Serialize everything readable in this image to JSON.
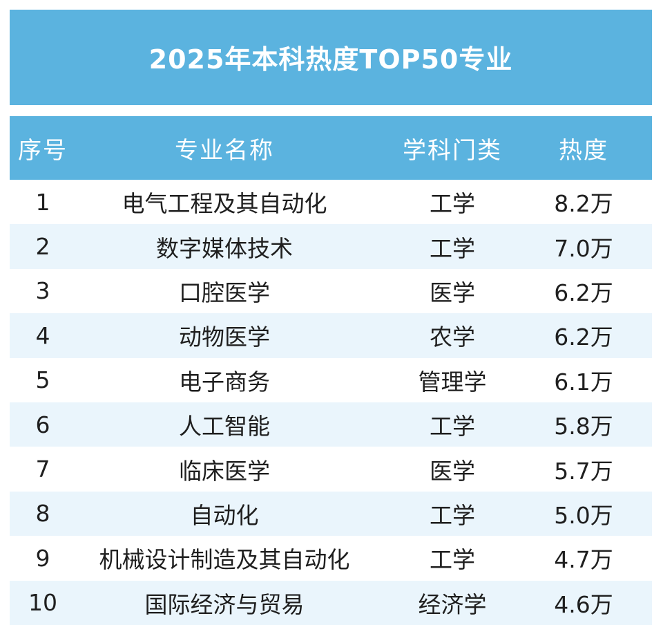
{
  "title": "2025年本科热度TOP50专业",
  "header": {
    "index": "序号",
    "major": "专业名称",
    "category": "学科门类",
    "heat": "热度"
  },
  "rows": [
    {
      "index": "1",
      "major": "电气工程及其自动化",
      "category": "工学",
      "heat": "8.2万"
    },
    {
      "index": "2",
      "major": "数字媒体技术",
      "category": "工学",
      "heat": "7.0万"
    },
    {
      "index": "3",
      "major": "口腔医学",
      "category": "医学",
      "heat": "6.2万"
    },
    {
      "index": "4",
      "major": "动物医学",
      "category": "农学",
      "heat": "6.2万"
    },
    {
      "index": "5",
      "major": "电子商务",
      "category": "管理学",
      "heat": "6.1万"
    },
    {
      "index": "6",
      "major": "人工智能",
      "category": "工学",
      "heat": "5.8万"
    },
    {
      "index": "7",
      "major": "临床医学",
      "category": "医学",
      "heat": "5.7万"
    },
    {
      "index": "8",
      "major": "自动化",
      "category": "工学",
      "heat": "5.0万"
    },
    {
      "index": "9",
      "major": "机械设计制造及其自动化",
      "category": "工学",
      "heat": "4.7万"
    },
    {
      "index": "10",
      "major": "国际经济与贸易",
      "category": "经济学",
      "heat": "4.6万"
    }
  ],
  "colors": {
    "header_bg": "#5bb3df",
    "alt_row_bg": "#eaf5fc",
    "text": "#1f1f1f"
  }
}
